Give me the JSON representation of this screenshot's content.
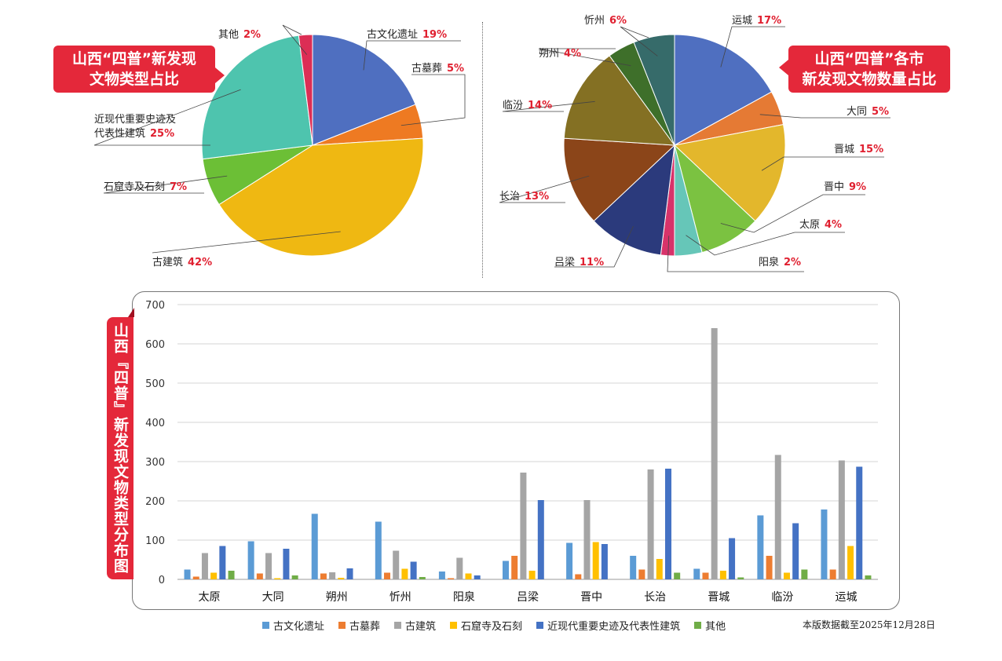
{
  "chart_data": [
    {
      "type": "pie",
      "title": "山西“四普”新发现文物类型占比",
      "title_lines": [
        "山西“四普”新发现",
        "文物类型占比"
      ],
      "slices": [
        {
          "label": "古文化遗址",
          "value": 19,
          "pct": "19%",
          "color": "#4f6fc0"
        },
        {
          "label": "古墓葬",
          "value": 5,
          "pct": "5%",
          "color": "#ee7a22"
        },
        {
          "label": "古建筑",
          "value": 42,
          "pct": "42%",
          "color": "#efb812"
        },
        {
          "label": "石窟寺及石刻",
          "value": 7,
          "pct": "7%",
          "color": "#6cbf36"
        },
        {
          "label": "近现代重要史迹及代表性建筑",
          "label_lines": [
            "近现代重要史迹及",
            "代表性建筑"
          ],
          "value": 25,
          "pct": "25%",
          "color": "#4ec4ae"
        },
        {
          "label": "其他",
          "value": 2,
          "pct": "2%",
          "color": "#dc2e55"
        }
      ]
    },
    {
      "type": "pie",
      "title": "山西“四普”各市新发现文物数量占比",
      "title_lines": [
        "山西“四普”各市",
        "新发现文物数量占比"
      ],
      "slices": [
        {
          "label": "运城",
          "value": 17,
          "pct": "17%",
          "color": "#4f6fc0"
        },
        {
          "label": "大同",
          "value": 5,
          "pct": "5%",
          "color": "#e57a34"
        },
        {
          "label": "晋城",
          "value": 15,
          "pct": "15%",
          "color": "#e3b72c"
        },
        {
          "label": "晋中",
          "value": 9,
          "pct": "9%",
          "color": "#7bc241"
        },
        {
          "label": "太原",
          "value": 4,
          "pct": "4%",
          "color": "#66c6b8"
        },
        {
          "label": "阳泉",
          "value": 2,
          "pct": "2%",
          "color": "#d7336a"
        },
        {
          "label": "吕梁",
          "value": 11,
          "pct": "11%",
          "color": "#2b3a7c"
        },
        {
          "label": "长治",
          "value": 13,
          "pct": "13%",
          "color": "#8b4519"
        },
        {
          "label": "临汾",
          "value": 14,
          "pct": "14%",
          "color": "#847023"
        },
        {
          "label": "朔州",
          "value": 4,
          "pct": "4%",
          "color": "#3e6f2a"
        },
        {
          "label": "忻州",
          "value": 6,
          "pct": "6%",
          "color": "#366b6a"
        }
      ]
    },
    {
      "type": "bar",
      "title": "山西『四普』新发现文物类型分布图",
      "categories": [
        "太原",
        "大同",
        "朔州",
        "忻州",
        "阳泉",
        "吕梁",
        "晋中",
        "长治",
        "晋城",
        "临汾",
        "运城"
      ],
      "ylim": [
        0,
        700
      ],
      "yticks": [
        "0",
        "100",
        "200",
        "300",
        "400",
        "500",
        "600",
        "700"
      ],
      "grid": true,
      "legend": "bottom",
      "series": [
        {
          "name": "古文化遗址",
          "color": "#5b9bd5",
          "values": [
            25,
            97,
            167,
            147,
            20,
            47,
            93,
            60,
            27,
            163,
            178
          ]
        },
        {
          "name": "古墓葬",
          "color": "#ed7d31",
          "values": [
            7,
            15,
            15,
            17,
            3,
            60,
            13,
            25,
            17,
            60,
            25
          ]
        },
        {
          "name": "古建筑",
          "color": "#a5a5a5",
          "values": [
            67,
            67,
            18,
            73,
            55,
            272,
            202,
            280,
            640,
            317,
            303
          ]
        },
        {
          "name": "石窟寺及石刻",
          "color": "#ffc000",
          "values": [
            17,
            3,
            4,
            27,
            15,
            22,
            95,
            52,
            22,
            17,
            85
          ]
        },
        {
          "name": "近现代重要史迹及代表性建筑",
          "color": "#4472c4",
          "values": [
            85,
            78,
            28,
            45,
            10,
            202,
            90,
            282,
            105,
            143,
            287
          ]
        },
        {
          "name": "其他",
          "color": "#70ad47",
          "values": [
            22,
            10,
            0,
            6,
            0,
            0,
            0,
            17,
            5,
            25,
            10
          ]
        }
      ]
    }
  ],
  "note": "本版数据截至2025年12月28日"
}
